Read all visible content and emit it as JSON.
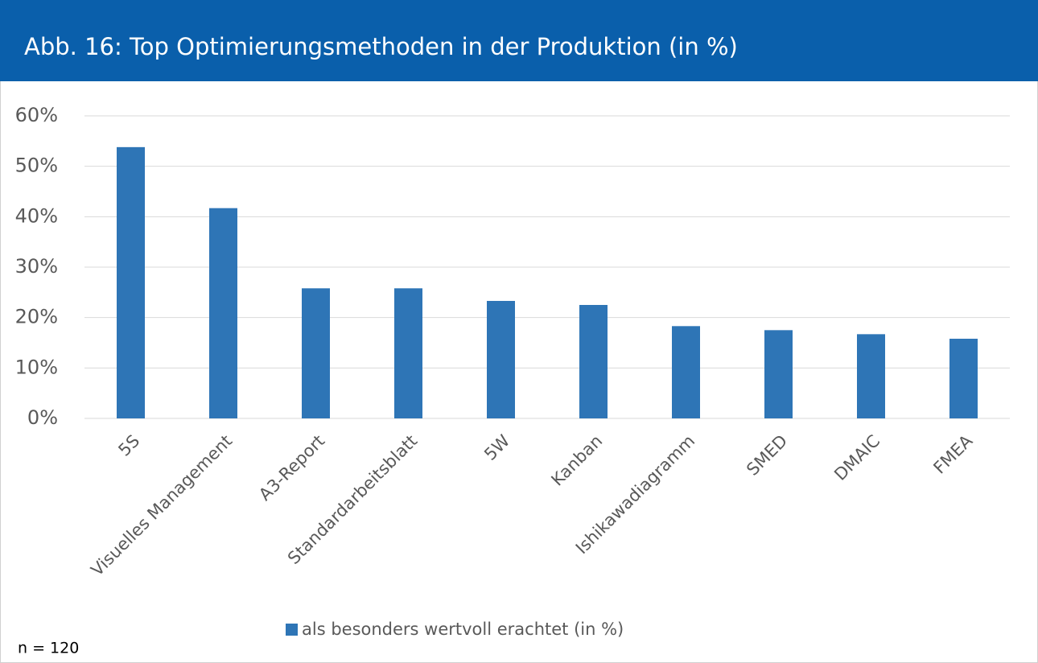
{
  "chart_data": {
    "type": "bar",
    "title": "Abb. 16: Top Optimierungsmethoden in der Produktion (in %)",
    "categories": [
      "5S",
      "Visuelles Management",
      "A3-Report",
      "Standardarbeitsblatt",
      "5W",
      "Kanban",
      "Ishikawadiagramm",
      "SMED",
      "DMAIC",
      "FMEA"
    ],
    "series": [
      {
        "name": "als besonders wertvoll erachtet (in %)",
        "color": "#2e75b6",
        "values": [
          53.8,
          41.7,
          25.8,
          25.8,
          23.3,
          22.5,
          18.3,
          17.5,
          16.7,
          15.8
        ]
      }
    ],
    "ylim": [
      0,
      60
    ],
    "yticks": [
      {
        "value": 0,
        "label": "0%"
      },
      {
        "value": 10,
        "label": "10%"
      },
      {
        "value": 20,
        "label": "20%"
      },
      {
        "value": 30,
        "label": "30%"
      },
      {
        "value": 40,
        "label": "40%"
      },
      {
        "value": 50,
        "label": "50%"
      },
      {
        "value": 60,
        "label": "60%"
      }
    ],
    "grid": true,
    "legend": "bottom",
    "note": "n = 120"
  }
}
